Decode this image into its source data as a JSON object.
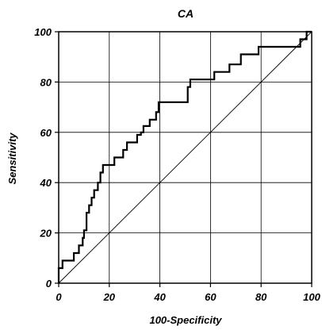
{
  "chart_data": {
    "type": "line",
    "title": "CA",
    "xlabel": "100-Specificity",
    "ylabel": "Sensitivity",
    "xlim": [
      0,
      100
    ],
    "ylim": [
      0,
      100
    ],
    "x_ticks": [
      "0",
      "20",
      "40",
      "60",
      "80",
      "100"
    ],
    "y_ticks": [
      "0",
      "20",
      "40",
      "60",
      "80",
      "100"
    ],
    "grid": true,
    "legend": "none",
    "colors": {
      "curve": "#000000",
      "reference": "#000000",
      "grid": "#000000",
      "background": "#ffffff"
    },
    "series": [
      {
        "x": [
          0,
          0,
          1.5,
          1.5,
          6,
          6,
          8,
          8,
          9.5,
          9.5,
          10,
          10,
          11,
          11,
          12,
          12,
          13,
          13,
          14,
          14,
          15.5,
          15.5,
          16.5,
          16.5,
          17.5,
          17.5,
          22,
          22,
          25.5,
          25.5,
          27,
          27,
          31,
          31,
          32.5,
          32.5,
          33.5,
          33.5,
          36,
          36,
          38.5,
          38.5,
          39.5,
          39.5,
          40,
          40,
          51,
          51,
          52,
          52,
          61.5,
          61.5,
          67.5,
          67.5,
          72,
          72,
          79,
          79,
          94,
          94,
          95.5,
          95.5,
          98,
          98,
          100
        ],
        "y": [
          0,
          6,
          6,
          9,
          9,
          12,
          12,
          15,
          15,
          18,
          18,
          21,
          21,
          28,
          28,
          31,
          31,
          34,
          34,
          37,
          37,
          40,
          40,
          44,
          44,
          47,
          47,
          50,
          50,
          53,
          53,
          56,
          56,
          59,
          59,
          60,
          60,
          62.5,
          62.5,
          65,
          65,
          68,
          68,
          72,
          72,
          72,
          72,
          78,
          78,
          81,
          81,
          84,
          84,
          87,
          87,
          91,
          91,
          94,
          94,
          94,
          94,
          97,
          97,
          100,
          100
        ]
      },
      {
        "x": [
          0,
          100
        ],
        "y": [
          0,
          100
        ]
      }
    ]
  }
}
